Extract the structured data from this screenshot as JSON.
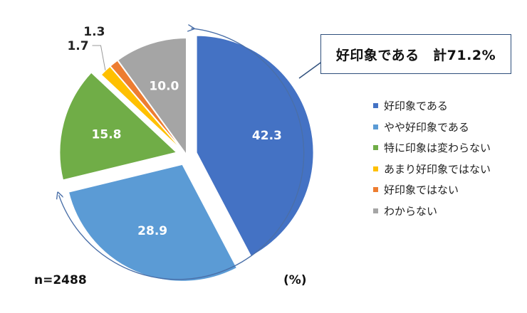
{
  "chart_data": {
    "type": "pie",
    "categories": [
      "好印象である",
      "やや好印象である",
      "特に印象は変わらない",
      "あまり好印象ではない",
      "好印象ではない",
      "わからない"
    ],
    "values": [
      42.3,
      28.9,
      15.8,
      1.7,
      1.3,
      10.0
    ],
    "value_labels": [
      "42.3",
      "28.9",
      "15.8",
      "1.7",
      "1.3",
      "10.0"
    ],
    "colors": [
      "#4472c4",
      "#5b9bd5",
      "#70ad47",
      "#ffc000",
      "#ed7d31",
      "#a5a5a5"
    ],
    "exploded": [
      0,
      1,
      2
    ],
    "legend_position": "right",
    "annotation": "好印象である　計71.2%",
    "sample_size": "n=2488",
    "unit": "(%)"
  }
}
